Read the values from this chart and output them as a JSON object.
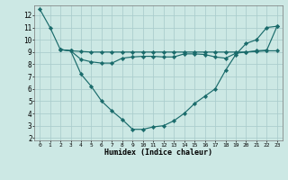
{
  "bg_color": "#cce8e4",
  "grid_color": "#aacccc",
  "line_color": "#1a6b6b",
  "xlabel": "Humidex (Indice chaleur)",
  "xlim": [
    -0.5,
    23.5
  ],
  "ylim": [
    1.8,
    12.8
  ],
  "yticks": [
    2,
    3,
    4,
    5,
    6,
    7,
    8,
    9,
    10,
    11,
    12
  ],
  "xticks": [
    0,
    1,
    2,
    3,
    4,
    5,
    6,
    7,
    8,
    9,
    10,
    11,
    12,
    13,
    14,
    15,
    16,
    17,
    18,
    19,
    20,
    21,
    22,
    23
  ],
  "line1_x": [
    0,
    1,
    2,
    3,
    4,
    5,
    6,
    7,
    8,
    9,
    10,
    11,
    12,
    13,
    14,
    15,
    16,
    17,
    18,
    19,
    20,
    21,
    22,
    23
  ],
  "line1_y": [
    12.5,
    11.0,
    9.2,
    9.1,
    7.2,
    6.2,
    5.0,
    4.2,
    3.5,
    2.7,
    2.7,
    2.9,
    3.0,
    3.4,
    4.0,
    4.8,
    5.4,
    6.0,
    7.5,
    8.8,
    9.7,
    10.0,
    11.0,
    11.1
  ],
  "line2_x": [
    2,
    3,
    4,
    5,
    6,
    7,
    8,
    9,
    10,
    11,
    12,
    13,
    14,
    15,
    16,
    17,
    18,
    19,
    20,
    21,
    22,
    23
  ],
  "line2_y": [
    9.2,
    9.1,
    8.4,
    8.2,
    8.1,
    8.1,
    8.5,
    8.6,
    8.65,
    8.65,
    8.6,
    8.6,
    8.85,
    8.85,
    8.8,
    8.6,
    8.5,
    8.9,
    9.0,
    9.05,
    9.1,
    9.1
  ],
  "line3_x": [
    2,
    3,
    4,
    5,
    6,
    7,
    8,
    9,
    10,
    11,
    12,
    13,
    14,
    15,
    16,
    17,
    18,
    19,
    20,
    21,
    22,
    23
  ],
  "line3_y": [
    9.2,
    9.1,
    9.05,
    9.0,
    9.0,
    9.0,
    9.0,
    9.0,
    9.0,
    9.0,
    9.0,
    9.0,
    9.0,
    9.0,
    9.0,
    9.0,
    9.0,
    9.0,
    9.0,
    9.1,
    9.15,
    11.1
  ]
}
